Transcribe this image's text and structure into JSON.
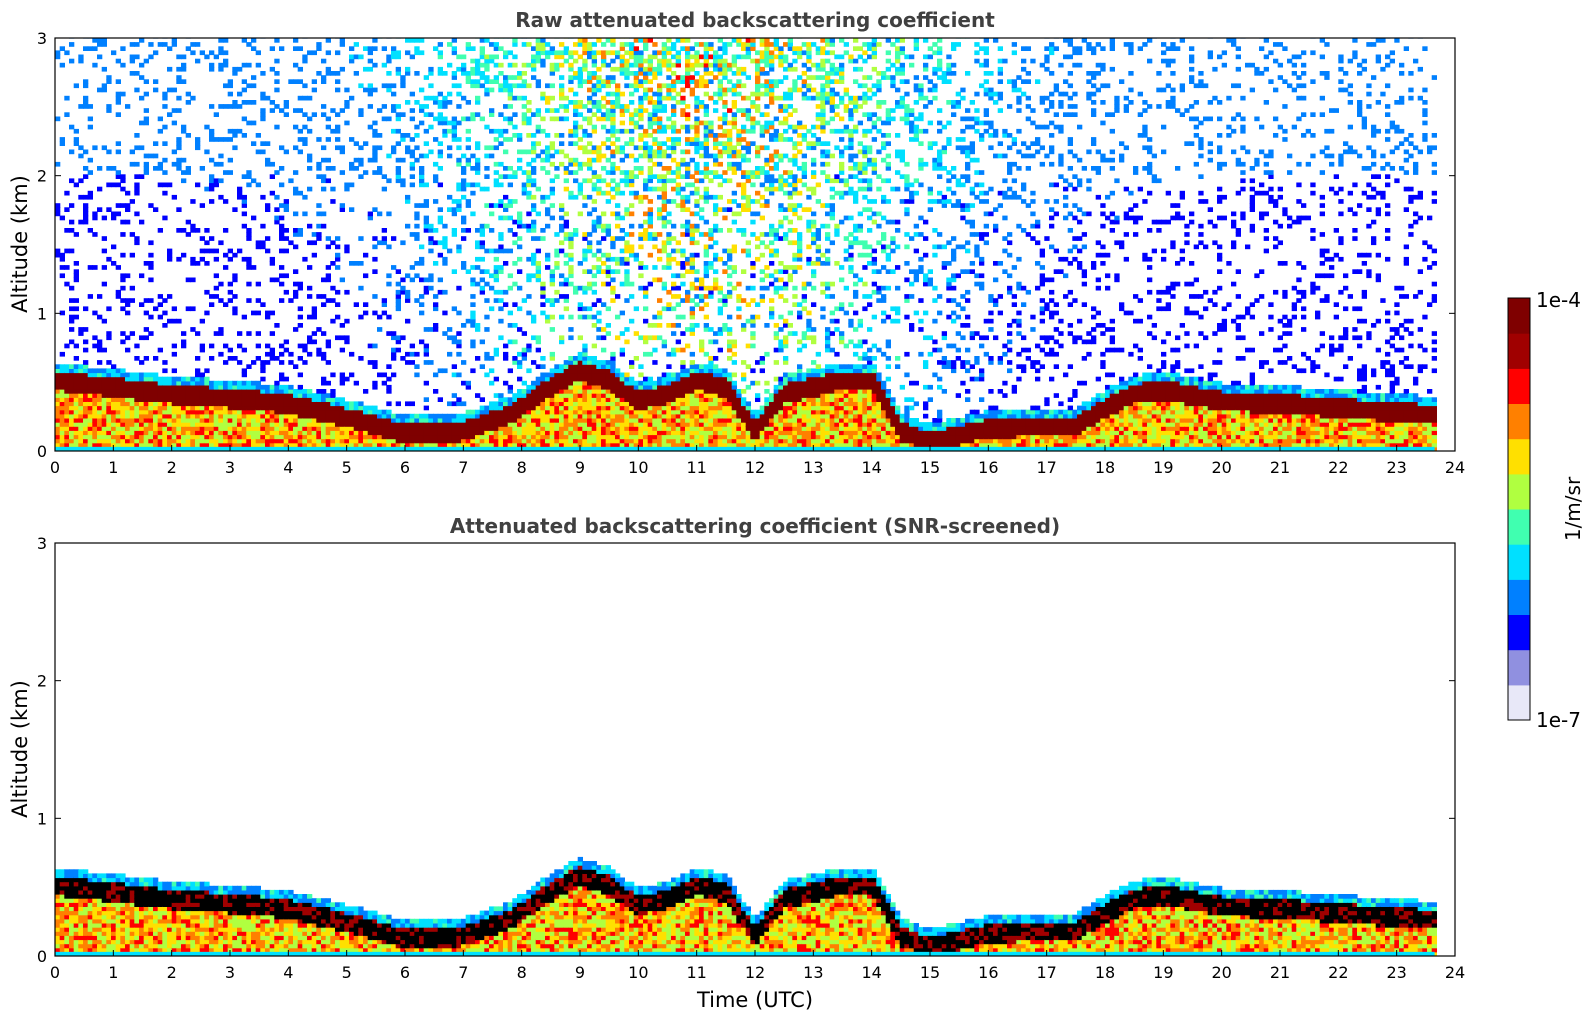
{
  "chart_data": [
    {
      "type": "heatmap",
      "title": "Raw attenuated backscattering coefficient",
      "xlabel": "",
      "ylabel": "Altitude (km)",
      "xlim": [
        0,
        24
      ],
      "ylim": [
        0,
        3
      ],
      "xticks": [
        "0",
        "1",
        "2",
        "3",
        "4",
        "5",
        "6",
        "7",
        "8",
        "9",
        "10",
        "11",
        "12",
        "13",
        "14",
        "15",
        "16",
        "17",
        "18",
        "19",
        "20",
        "21",
        "22",
        "23",
        "24"
      ],
      "yticks": [
        "0",
        "1",
        "2",
        "3"
      ],
      "data_end_time": 23.65,
      "boundary_layer_top": {
        "t": [
          0,
          1,
          2,
          3,
          4,
          5,
          6,
          7,
          7.8,
          8.5,
          9,
          9.5,
          10,
          10.5,
          11,
          11.5,
          12,
          12.5,
          13,
          13.5,
          14,
          14.5,
          15,
          16,
          17,
          17.5,
          18,
          18.5,
          19,
          20,
          21,
          22,
          23,
          23.65
        ],
        "z": [
          0.55,
          0.5,
          0.45,
          0.42,
          0.38,
          0.28,
          0.16,
          0.18,
          0.3,
          0.5,
          0.62,
          0.55,
          0.4,
          0.45,
          0.55,
          0.5,
          0.18,
          0.45,
          0.5,
          0.55,
          0.55,
          0.18,
          0.1,
          0.2,
          0.22,
          0.22,
          0.35,
          0.45,
          0.48,
          0.4,
          0.38,
          0.35,
          0.32,
          0.3
        ]
      },
      "noise_level": "high"
    },
    {
      "type": "heatmap",
      "title": "Attenuated backscattering coefficient (SNR-screened)",
      "xlabel": "Time (UTC)",
      "ylabel": "Altitude (km)",
      "xlim": [
        0,
        24
      ],
      "ylim": [
        0,
        3
      ],
      "xticks": [
        "0",
        "1",
        "2",
        "3",
        "4",
        "5",
        "6",
        "7",
        "8",
        "9",
        "10",
        "11",
        "12",
        "13",
        "14",
        "15",
        "16",
        "17",
        "18",
        "19",
        "20",
        "21",
        "22",
        "23",
        "24"
      ],
      "yticks": [
        "0",
        "1",
        "2",
        "3"
      ],
      "data_end_time": 23.65,
      "saturated_color": "#000000",
      "noise_level": "screened"
    }
  ],
  "colorbar": {
    "label": "1/m/sr",
    "max_label": "1e-4",
    "min_label": "1e-7",
    "scale": "log",
    "colormap": "jet",
    "colors": [
      "#e8e8f8",
      "#9090e0",
      "#0000ff",
      "#0080ff",
      "#00e0ff",
      "#40ffb0",
      "#b0ff40",
      "#ffe000",
      "#ff8000",
      "#ff0000",
      "#a00000",
      "#7f0000"
    ]
  }
}
